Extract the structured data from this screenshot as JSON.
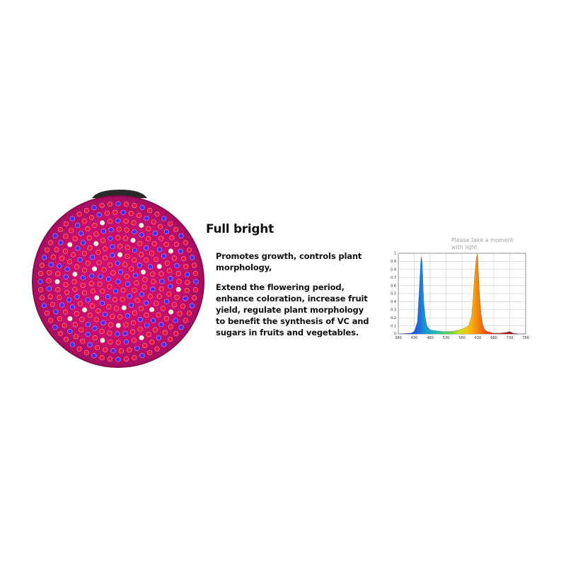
{
  "product": {
    "heading": "Full bright",
    "paragraph1": "Promotes growth, controls plant\nmorphology,",
    "paragraph2": "Extend the flowering period,\nenhance coloration, increase fruit\nyield, regulate plant morphology\nto benefit the synthesis of VC and\nsugars in fruits and vegetables."
  },
  "chart_caption": "Please take a moment\nwith light",
  "colors": {
    "led_red": "#e8163c",
    "led_blue": "#4a2cf0",
    "led_white": "#fff3d8",
    "board": "#c5116a"
  },
  "chart_data": {
    "type": "line",
    "title": "",
    "xlabel": "",
    "ylabel": "",
    "xlim": [
      380,
      780
    ],
    "ylim": [
      0,
      1
    ],
    "x_ticks": [
      "380",
      "430",
      "480",
      "530",
      "580",
      "630",
      "680",
      "730",
      "780"
    ],
    "y_ticks": [
      "0",
      "0.1",
      "0.2",
      "0.3",
      "0.4",
      "0.5",
      "0.6",
      "0.7",
      "0.8",
      "0.9",
      "1"
    ],
    "grid": true,
    "series": [
      {
        "x": [
          380,
          420,
          430,
          440,
          445,
          450,
          452,
          455,
          458,
          460,
          465,
          470,
          480,
          500,
          520,
          540,
          560,
          580,
          600,
          610,
          615,
          620,
          625,
          628,
          630,
          632,
          635,
          640,
          645,
          650,
          660,
          680,
          700,
          720,
          730,
          735,
          740,
          760,
          780
        ],
        "values": [
          0,
          0.01,
          0.03,
          0.15,
          0.5,
          0.88,
          0.96,
          0.9,
          0.6,
          0.4,
          0.2,
          0.1,
          0.05,
          0.04,
          0.03,
          0.03,
          0.04,
          0.06,
          0.1,
          0.22,
          0.45,
          0.75,
          0.95,
          0.99,
          0.9,
          0.75,
          0.5,
          0.25,
          0.12,
          0.06,
          0.03,
          0.01,
          0.01,
          0.02,
          0.03,
          0.02,
          0.01,
          0,
          0
        ]
      }
    ]
  }
}
